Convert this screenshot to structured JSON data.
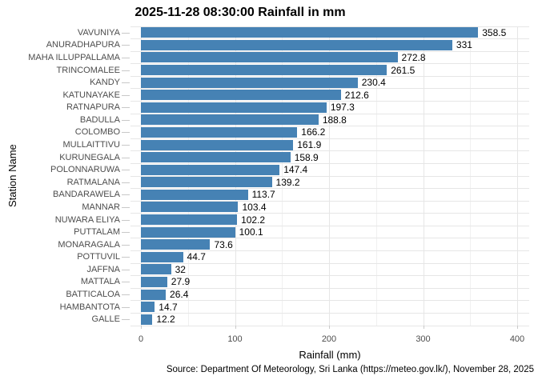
{
  "chart_data": {
    "type": "bar",
    "orientation": "horizontal",
    "title": "2025-11-28 08:30:00 Rainfall in mm",
    "xlabel": "Rainfall (mm)",
    "ylabel": "Station Name",
    "caption": "Source: Department Of Meteorology, Sri Lanka (https://meteo.gov.lk/), November 28, 2025",
    "categories": [
      "VAVUNIYA",
      "ANURADHAPURA",
      "MAHA ILLUPPALLAMA",
      "TRINCOMALEE",
      "KANDY",
      "KATUNAYAKE",
      "RATNAPURA",
      "BADULLA",
      "COLOMBO",
      "MULLAITTIVU",
      "KURUNEGALA",
      "POLONNARUWA",
      "RATMALANA",
      "BANDARAWELA",
      "MANNAR",
      "NUWARA ELIYA",
      "PUTTALAM",
      "MONARAGALA",
      "POTTUVIL",
      "JAFFNA",
      "MATTALA",
      "BATTICALOA",
      "HAMBANTOTA",
      "GALLE"
    ],
    "values": [
      358.5,
      331,
      272.8,
      261.5,
      230.4,
      212.6,
      197.3,
      188.8,
      166.2,
      161.9,
      158.9,
      147.4,
      139.2,
      113.7,
      103.4,
      102.2,
      100.1,
      73.6,
      44.7,
      32,
      27.9,
      26.4,
      14.7,
      12.2
    ],
    "value_labels": [
      "358.5",
      "331",
      "272.8",
      "261.5",
      "230.4",
      "212.6",
      "197.3",
      "188.8",
      "166.2",
      "161.9",
      "158.9",
      "147.4",
      "139.2",
      "113.7",
      "103.4",
      "102.2",
      "100.1",
      "73.6",
      "44.7",
      "32",
      "27.9",
      "26.4",
      "14.7",
      "12.2"
    ],
    "xlim": [
      0,
      400
    ],
    "xticks": [
      0,
      100,
      200,
      300,
      400
    ],
    "minor_xticks": [
      50,
      150,
      250,
      350
    ],
    "grid": true,
    "legend": "none",
    "bar_color": "#4682B4",
    "grid_color": "#E6E6E6",
    "minor_grid_color": "#F0F0F0",
    "tick_color": "#C9C9C9",
    "axis_text_color": "#4D4D4D",
    "text_color": "#000000",
    "background_color": "#FFFFFF"
  }
}
